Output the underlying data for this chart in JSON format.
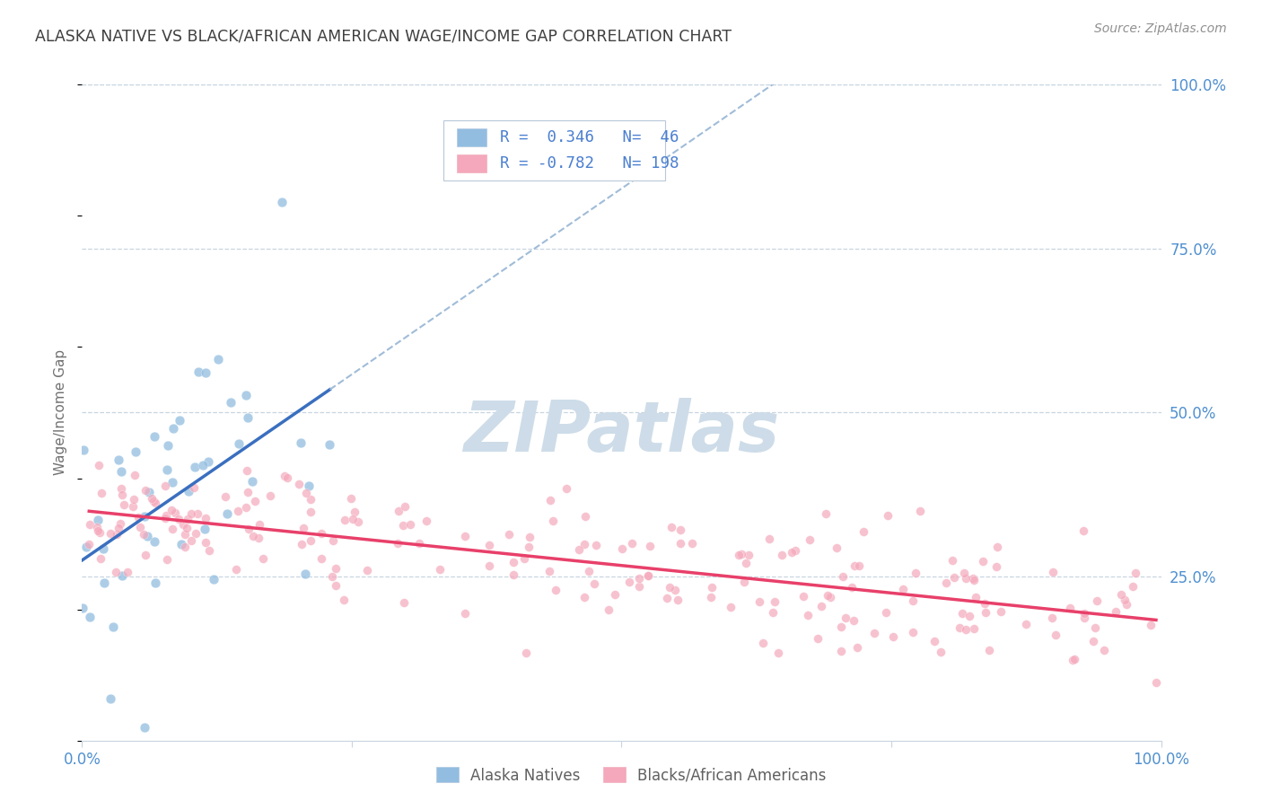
{
  "title": "ALASKA NATIVE VS BLACK/AFRICAN AMERICAN WAGE/INCOME GAP CORRELATION CHART",
  "source": "Source: ZipAtlas.com",
  "ylabel": "Wage/Income Gap",
  "xlim": [
    0.0,
    1.0
  ],
  "ylim": [
    0.0,
    1.0
  ],
  "yticks": [
    0.25,
    0.5,
    0.75,
    1.0
  ],
  "ytick_labels": [
    "25.0%",
    "50.0%",
    "75.0%",
    "100.0%"
  ],
  "alaska_R": 0.346,
  "alaska_N": 46,
  "black_R": -0.782,
  "black_N": 198,
  "alaska_color": "#92bde0",
  "alaska_line_color": "#3a6fbf",
  "alaska_line_dash_color": "#a0bcd8",
  "black_color": "#f5a8bb",
  "black_line_color": "#e8406a",
  "watermark": "ZIPatlas",
  "watermark_color": "#cddce8",
  "legend_label_alaska": "Alaska Natives",
  "legend_label_black": "Blacks/African Americans",
  "background_color": "#ffffff",
  "grid_color": "#c8d5e0",
  "title_color": "#404040",
  "axis_label_color": "#5090d0",
  "legend_text_color": "#4a7fd0",
  "alaska_scatter_seed": 42,
  "black_scatter_seed": 99
}
